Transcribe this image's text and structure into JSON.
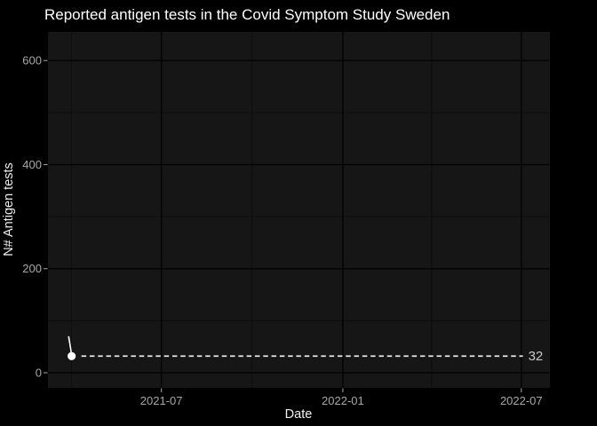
{
  "figure": {
    "kind": "ggplot-style dark line chart",
    "background": "#000000"
  },
  "colors": {
    "background": "#000000",
    "panel": "#161616",
    "grid_major": "#040404",
    "grid_minor": "#0c0c0c",
    "tick_mark": "#9b9b9b",
    "tick_label": "#a8a8a8",
    "axis_title": "#efefef",
    "title": "#ffffff",
    "series": "#ffffff",
    "marker": "#ffffff",
    "reference_line": "#e6e6e6",
    "annotation_label": "#c9c9c9"
  },
  "chart_data": {
    "type": "line",
    "title": "Reported antigen tests in the Covid Symptom Study Sweden",
    "xlabel": "Date",
    "ylabel": "N# Antigen tests",
    "legend_position": "none",
    "grid": "major+minor",
    "x_domain": [
      "2021-03-08",
      "2022-07-30"
    ],
    "y_domain": [
      -29,
      655
    ],
    "x_major_ticks": [
      {
        "date": "2021-07-01",
        "label": "2021-07"
      },
      {
        "date": "2022-01-01",
        "label": "2022-01"
      },
      {
        "date": "2022-07-01",
        "label": "2022-07"
      }
    ],
    "x_minor_ticks": [
      "2021-04-01",
      "2021-10-01",
      "2022-04-01"
    ],
    "y_major_ticks": [
      {
        "value": 0,
        "label": "0"
      },
      {
        "value": 200,
        "label": "200"
      },
      {
        "value": 400,
        "label": "400"
      },
      {
        "value": 600,
        "label": "600"
      }
    ],
    "y_minor_ticks": [
      100,
      300,
      500
    ],
    "series": [
      {
        "name": "reported antigen tests",
        "color": "#ffffff",
        "points": [
          {
            "date": "2021-03-29",
            "value": 69
          },
          {
            "date": "2021-03-31",
            "value": 47
          },
          {
            "date": "2021-04-01",
            "value": 32
          }
        ],
        "end_marker": true
      }
    ],
    "annotation": {
      "type": "dashed-hline",
      "value": 32,
      "label": "32",
      "from_date": "2021-04-01",
      "label_date": "2022-07-08"
    }
  }
}
